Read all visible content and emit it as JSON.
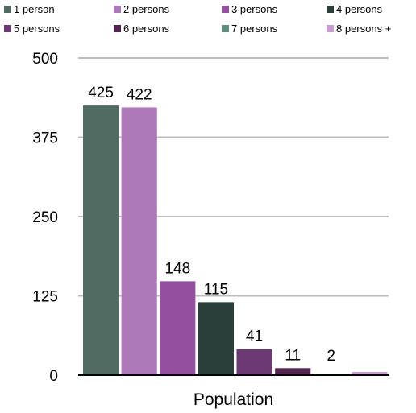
{
  "chart_data": {
    "type": "bar",
    "title": "",
    "xlabel": "Population",
    "ylabel": "",
    "ylim": [
      0,
      500
    ],
    "yticks": [
      0,
      125,
      250,
      375,
      500
    ],
    "grid": true,
    "legend_position": "top",
    "categories": [
      "Population"
    ],
    "series": [
      {
        "name": "1 person",
        "values": [
          425
        ],
        "label": "425",
        "color": "#4f6b62"
      },
      {
        "name": "2 persons",
        "values": [
          422
        ],
        "label": "422",
        "color": "#ac79b9"
      },
      {
        "name": "3 persons",
        "values": [
          148
        ],
        "label": "148",
        "color": "#93509e"
      },
      {
        "name": "4 persons",
        "values": [
          115
        ],
        "label": "115",
        "color": "#2c3e39"
      },
      {
        "name": "5 persons",
        "values": [
          41
        ],
        "label": "41",
        "color": "#6b3a72"
      },
      {
        "name": "6 persons",
        "values": [
          11
        ],
        "label": "11",
        "color": "#52244f"
      },
      {
        "name": "7 persons",
        "values": [
          2
        ],
        "label": "2",
        "color": "#5e8d7e"
      },
      {
        "name": "8 persons +",
        "values": [
          5
        ],
        "label": "",
        "color": "#c99cd1"
      }
    ]
  }
}
